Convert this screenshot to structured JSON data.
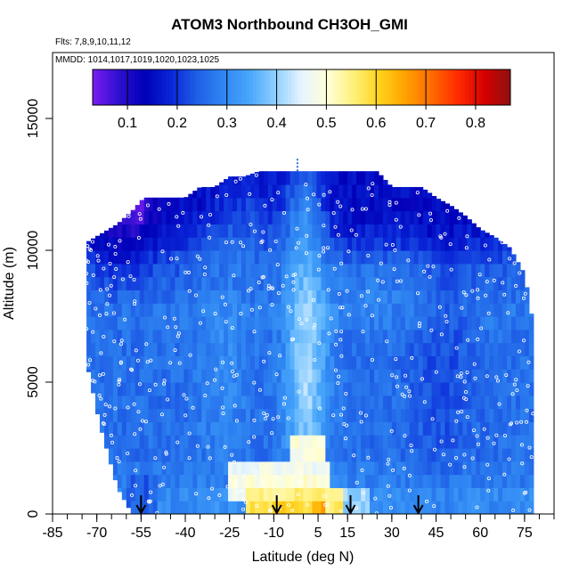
{
  "page": {
    "title": "ATOM3 Northbound CH3OH_GMI",
    "flights_note": "Flts: 7,8,9,10,11,12",
    "dates_note": "MMDD: 1014,1017,1019,1020,1023,1025"
  },
  "chart_data": {
    "type": "heatmap",
    "title": "ATOM3 Northbound CH3OH_GMI",
    "xlabel": "Latitude (deg N)",
    "ylabel": "Altitude (m)",
    "xlim": [
      -85,
      85
    ],
    "ylim": [
      0,
      17500
    ],
    "x_ticks": [
      "-85",
      "-70",
      "-55",
      "-40",
      "-25",
      "-10",
      "5",
      "15",
      "30",
      "45",
      "60",
      "75"
    ],
    "x_tick_values": [
      -85,
      -70,
      -55,
      -40,
      -25,
      -10,
      5,
      15,
      30,
      45,
      60,
      75
    ],
    "y_ticks": [
      "0",
      "5000",
      "10000",
      "15000"
    ],
    "y_tick_values": [
      0,
      5000,
      10000,
      15000
    ],
    "colorbar": {
      "range": [
        0.03,
        0.87
      ],
      "ticks": [
        "0.1",
        "0.2",
        "0.3",
        "0.4",
        "0.5",
        "0.6",
        "0.7",
        "0.8"
      ],
      "tick_values": [
        0.1,
        0.2,
        0.3,
        0.4,
        0.5,
        0.6,
        0.7,
        0.8
      ],
      "colors": [
        "#7a1cf0",
        "#2e0fcf",
        "#0000b8",
        "#0a26d8",
        "#1f5fe6",
        "#2f86f2",
        "#48a6fb",
        "#8fcfff",
        "#e6f4ff",
        "#ffffd8",
        "#fff07a",
        "#ffd21a",
        "#ffa000",
        "#ff6a00",
        "#ff2a00",
        "#d60000",
        "#8e1010"
      ]
    },
    "profile_latitudes": [
      -55,
      -9,
      16,
      39
    ],
    "profile_marker": "down-arrow",
    "observation_marker": "open-circle",
    "top_marker": {
      "lat": -2,
      "alt_range": [
        13000,
        13500
      ]
    },
    "curtain": {
      "lat_nodes": [
        -73.5,
        -69,
        -63,
        -58,
        -54,
        -50,
        -45,
        -40,
        -35,
        -30,
        -25,
        -20,
        -15,
        -10,
        -5,
        0,
        5,
        10,
        15,
        20,
        25,
        30,
        35,
        40,
        45,
        50,
        55,
        60,
        65,
        70,
        75,
        78
      ],
      "top_alt": [
        10300,
        10600,
        11000,
        11500,
        12000,
        12000,
        12000,
        12000,
        12400,
        12400,
        12800,
        12800,
        13000,
        13000,
        13000,
        13000,
        13000,
        13000,
        13000,
        13000,
        13000,
        12400,
        12400,
        12400,
        12000,
        11700,
        11300,
        10800,
        10500,
        10100,
        9100,
        7100
      ],
      "bottom_alt": [
        5800,
        3400,
        1000,
        0,
        0,
        0,
        0,
        0,
        0,
        0,
        0,
        0,
        0,
        0,
        0,
        0,
        0,
        0,
        0,
        0,
        0,
        0,
        0,
        0,
        0,
        0,
        0,
        0,
        0,
        0,
        0,
        0
      ],
      "alt_levels": [
        0,
        500,
        1000,
        1500,
        2000,
        2500,
        3000,
        3500,
        4000,
        4500,
        5000,
        5500,
        6000,
        6500,
        7000,
        7500,
        8000,
        8500,
        9000,
        9500,
        10000,
        10500,
        11000,
        11500,
        12000,
        12500,
        13000
      ],
      "background_by_level": [
        0.3,
        0.3,
        0.28,
        0.27,
        0.26,
        0.26,
        0.26,
        0.26,
        0.26,
        0.26,
        0.26,
        0.26,
        0.26,
        0.26,
        0.27,
        0.27,
        0.26,
        0.25,
        0.24,
        0.22,
        0.19,
        0.17,
        0.16,
        0.15,
        0.15,
        0.15,
        0.15
      ],
      "features": [
        {
          "lat": 1,
          "alt": 5500,
          "lat_width": 7,
          "alt_width": 5500,
          "amp": 0.15
        },
        {
          "lat": -27,
          "alt": 5500,
          "lat_width": 9,
          "alt_width": 4000,
          "amp": 0.04
        },
        {
          "lat": 47,
          "alt": 6000,
          "lat_width": 10,
          "alt_width": 4500,
          "amp": -0.04
        },
        {
          "lat": -62,
          "alt": 10300,
          "lat_width": 12,
          "alt_width": 1800,
          "amp": -0.06
        },
        {
          "lat": -57,
          "alt": 11800,
          "lat_width": 5,
          "alt_width": 800,
          "amp": -0.1
        },
        {
          "lat": 25,
          "alt": 8800,
          "lat_width": 22,
          "alt_width": 1500,
          "amp": 0.03
        },
        {
          "lat": -20,
          "alt": 11000,
          "lat_width": 12,
          "alt_width": 1500,
          "amp": 0.07
        },
        {
          "lat": 0,
          "alt": 11500,
          "lat_width": 7,
          "alt_width": 1800,
          "amp": 0.09
        }
      ],
      "boundary_layer": [
        {
          "lat_range": [
            -26,
            9
          ],
          "alt_range": [
            1500,
            2000
          ],
          "value": 0.47
        },
        {
          "lat_range": [
            -26,
            9
          ],
          "alt_range": [
            1000,
            1500
          ],
          "value": 0.5
        },
        {
          "lat_range": [
            -26,
            -20
          ],
          "alt_range": [
            500,
            1000
          ],
          "value": 0.47
        },
        {
          "lat_range": [
            -20,
            10
          ],
          "alt_range": [
            500,
            1000
          ],
          "value": 0.55
        },
        {
          "lat_range": [
            -20,
            -10
          ],
          "alt_range": [
            0,
            500
          ],
          "value": 0.58
        },
        {
          "lat_range": [
            -10,
            3
          ],
          "alt_range": [
            0,
            500
          ],
          "value": 0.6
        },
        {
          "lat_range": [
            3,
            8
          ],
          "alt_range": [
            0,
            500
          ],
          "value": 0.65
        },
        {
          "lat_range": [
            8,
            13
          ],
          "alt_range": [
            0,
            1000
          ],
          "value": 0.56
        },
        {
          "lat_range": [
            13,
            22
          ],
          "alt_range": [
            0,
            800
          ],
          "value": 0.4
        },
        {
          "lat_range": [
            -5,
            8
          ],
          "alt_range": [
            2000,
            3000
          ],
          "value": 0.49
        },
        {
          "lat_range": [
            -60,
            -50
          ],
          "alt_range": [
            0,
            1500
          ],
          "value": 0.24
        }
      ]
    }
  }
}
